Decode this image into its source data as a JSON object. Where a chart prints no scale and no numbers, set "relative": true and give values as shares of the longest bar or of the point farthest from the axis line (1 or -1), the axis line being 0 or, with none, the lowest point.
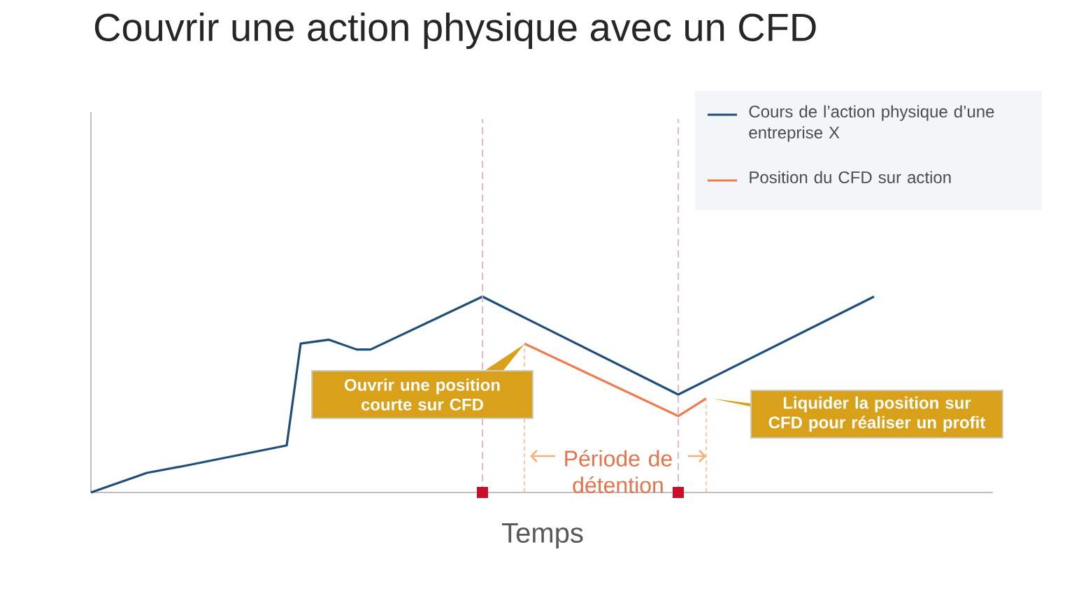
{
  "chart_data": {
    "type": "line",
    "title": "Couvrir une action physique avec un CFD",
    "xlabel": "Temps",
    "relative": true,
    "legend": "top right",
    "categories": [
      null,
      null,
      null,
      null,
      null,
      null,
      null,
      null,
      null,
      null,
      null,
      null,
      null,
      null,
      null,
      null,
      null,
      null,
      null,
      null,
      null,
      null,
      null,
      null,
      null,
      null,
      null,
      null,
      null,
      null,
      null,
      null,
      null,
      null,
      null,
      null,
      null,
      null,
      null,
      null,
      null,
      null,
      null,
      null,
      null,
      null,
      null,
      null,
      null,
      null,
      null,
      null,
      null,
      null,
      null,
      null,
      null
    ],
    "series": [
      {
        "name": "Cours de l’action physique d’une entreprise X",
        "color": "#1f4e79",
        "values": [
          0,
          null,
          null,
          null,
          0.1,
          null,
          null,
          0.14,
          null,
          null,
          null,
          null,
          null,
          null,
          0.24,
          0.76,
          null,
          0.78,
          null,
          0.73,
          0.73,
          null,
          null,
          null,
          null,
          null,
          null,
          null,
          1.0,
          null,
          null,
          null,
          null,
          null,
          null,
          null,
          null,
          null,
          null,
          null,
          null,
          null,
          0.5,
          null,
          null,
          null,
          null,
          null,
          null,
          null,
          null,
          null,
          null,
          null,
          null,
          null,
          1.0
        ]
      },
      {
        "name": "Position du CFD sur action",
        "color": "#f07c4e",
        "values": [
          null,
          null,
          null,
          null,
          null,
          null,
          null,
          null,
          null,
          null,
          null,
          null,
          null,
          null,
          null,
          null,
          null,
          null,
          null,
          null,
          null,
          null,
          null,
          null,
          null,
          null,
          null,
          null,
          null,
          null,
          null,
          0.76,
          null,
          null,
          null,
          null,
          null,
          null,
          null,
          null,
          null,
          null,
          0.39,
          null,
          0.48,
          null,
          null,
          null,
          null,
          null,
          null,
          null,
          null,
          null,
          null,
          null,
          null
        ]
      }
    ],
    "annotations": [
      "Ouvrir une position courte sur CFD",
      "Liquider la position sur CFD pour réaliser un profit",
      "Période de détention"
    ]
  }
}
